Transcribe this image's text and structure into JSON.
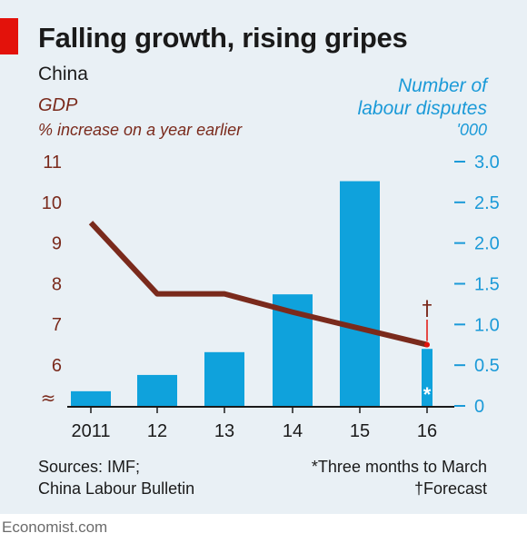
{
  "title": "Falling growth, rising gripes",
  "subtitle": "China",
  "left_axis": {
    "label": "GDP",
    "unit": "% increase on a year earlier",
    "color": "#7a2a1c"
  },
  "right_axis": {
    "label_lines": [
      "Number of",
      "labour disputes"
    ],
    "unit": "'000",
    "color": "#1b9ad8"
  },
  "footer": {
    "sources_lines": [
      "Sources: IMF;",
      "China Labour Bulletin"
    ],
    "notes_lines": [
      "*Three months to March",
      "†Forecast"
    ],
    "brand": "Economist.com"
  },
  "colors": {
    "bar": "#0fa2dc",
    "line": "#7a2a1c",
    "accent": "#e3120b",
    "panel": "#e9f0f5"
  },
  "chart_data": {
    "type": "bar+line",
    "categories": [
      "2011",
      "12",
      "13",
      "14",
      "15",
      "16"
    ],
    "bar_series": {
      "values": [
        0.18,
        0.38,
        0.66,
        1.37,
        2.76,
        0.7
      ],
      "axis": "right"
    },
    "line_series": {
      "values": [
        9.5,
        7.75,
        7.75,
        7.3,
        6.9,
        6.5
      ],
      "axis": "left"
    },
    "left_ylim": [
      5,
      11
    ],
    "left_ticks": [
      "6",
      "7",
      "8",
      "9",
      "10",
      "11"
    ],
    "right_ylim": [
      0,
      3.0
    ],
    "right_ticks": [
      "0",
      "0.5",
      "1.0",
      "1.5",
      "2.0",
      "2.5",
      "3.0"
    ],
    "annotations": {
      "asterisk": "*",
      "dagger": "†"
    },
    "axis_break_symbol": "≈",
    "grid": false
  }
}
